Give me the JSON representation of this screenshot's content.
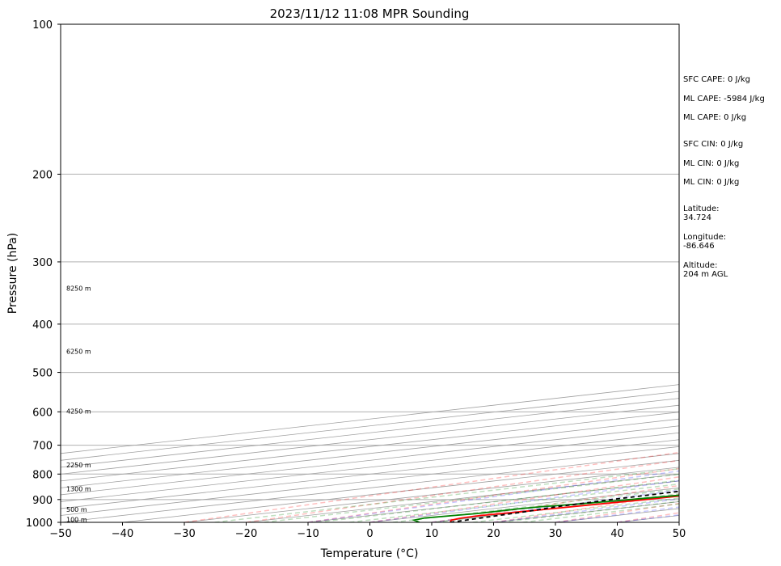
{
  "chart_data": {
    "type": "line",
    "title": "2023/11/12 11:08 MPR Sounding",
    "xlabel": "Temperature (°C)",
    "ylabel": "Pressure (hPa)",
    "xlim": [
      -50,
      50
    ],
    "ylim": [
      1000,
      100
    ],
    "y_scale": "log",
    "grid": true,
    "x_ticks": [
      -50,
      -40,
      -30,
      -20,
      -10,
      0,
      10,
      20,
      30,
      40,
      50
    ],
    "y_ticks": [
      100,
      200,
      300,
      400,
      500,
      600,
      700,
      800,
      900,
      1000
    ],
    "skew_isotherm_spacing": 10,
    "dry_adiabats_theta_c": [
      -30,
      -20,
      -10,
      0,
      10,
      20,
      30,
      40,
      50,
      60,
      70,
      80,
      90,
      100,
      110,
      120,
      130,
      140,
      150,
      160
    ],
    "moist_adiabats_t0_c": [
      -10,
      0,
      10,
      20,
      30,
      40
    ],
    "mixing_ratio_lines_gkg": [
      0.5,
      1,
      2,
      3,
      5,
      8,
      12,
      16,
      20
    ],
    "height_labels": [
      {
        "label": "100 m",
        "pressure": 990
      },
      {
        "label": "500 m",
        "pressure": 945
      },
      {
        "label": "1300 m",
        "pressure": 860
      },
      {
        "label": "2250 m",
        "pressure": 770
      },
      {
        "label": "4250 m",
        "pressure": 600
      },
      {
        "label": "6250 m",
        "pressure": 455
      },
      {
        "label": "8250 m",
        "pressure": 340
      }
    ],
    "series": [
      {
        "color": "#ff0000",
        "pressure": [
          1000,
          990,
          980,
          970,
          960,
          950,
          930,
          900,
          880,
          860,
          840,
          820,
          800,
          770,
          740,
          700,
          680,
          650,
          620,
          600,
          570,
          540,
          510,
          490,
          470,
          450,
          420,
          400,
          380,
          360,
          340,
          320,
          300,
          280
        ],
        "temperature": [
          13.0,
          10.0,
          8.5,
          8.0,
          8.5,
          9.0,
          10.0,
          11.5,
          12.0,
          12.5,
          13.5,
          13.5,
          13.5,
          13.5,
          13.0,
          12.0,
          11.0,
          10.0,
          7.5,
          6.0,
          3.5,
          0.5,
          -2.5,
          -4.5,
          -6.0,
          -8.0,
          -11.0,
          -13.5,
          -16.5,
          -19.5,
          -23.5,
          -26.5,
          -30.0,
          -34.0
        ]
      },
      {
        "color": "#008000",
        "pressure": [
          1000,
          990,
          980,
          970,
          960,
          950,
          940,
          930,
          920,
          900,
          880,
          860,
          850,
          840,
          820,
          800,
          780,
          760,
          740,
          700,
          680,
          650,
          620,
          600,
          580,
          560,
          550,
          530,
          500,
          480,
          450,
          420,
          400,
          390,
          380,
          370,
          360,
          350,
          330,
          310,
          300,
          290,
          280
        ],
        "temperature": [
          8.0,
          4.0,
          2.5,
          3.5,
          4.5,
          4.5,
          4.5,
          5.0,
          7.0,
          9.0,
          11.0,
          12.0,
          10.0,
          8.0,
          7.0,
          9.0,
          2.0,
          -4.0,
          -10.0,
          -15.5,
          -16.5,
          -19.0,
          -21.5,
          -24.0,
          -27.0,
          -30.0,
          -30.5,
          -33.0,
          -37.0,
          -38.5,
          -41.0,
          -44.0,
          -45.5,
          -47.5,
          -48.0,
          -48.5,
          -50.0,
          -52.0,
          -53.5,
          -55.0,
          -59.0,
          -71.0,
          -88.0
        ]
      },
      {
        "color": "#000000",
        "style": "dashed",
        "pressure": [
          1000,
          950,
          930,
          900,
          850,
          800,
          760,
          700,
          650,
          600,
          550,
          500,
          450,
          400,
          350,
          300,
          280
        ],
        "temperature": [
          13.0,
          9.5,
          7.5,
          6.0,
          4.5,
          2.5,
          1.0,
          -1.0,
          -3.5,
          -7.0,
          -11.0,
          -15.5,
          -21.0,
          -27.5,
          -35.0,
          -44.0,
          -48.0
        ]
      }
    ]
  },
  "info": {
    "sfc_cape": "SFC CAPE: 0 J/kg",
    "ml_cape_1": "ML CAPE: -5984 J/kg",
    "ml_cape_2": "ML CAPE: 0 J/kg",
    "sfc_cin": "SFC CIN: 0 J/kg",
    "ml_cin_1": "ML CIN: 0 J/kg",
    "ml_cin_2": "ML CIN: 0 J/kg",
    "latitude_label": "Latitude:",
    "latitude_value": "34.724",
    "longitude_label": "Longitude:",
    "longitude_value": "-86.646",
    "altitude_label": "Altitude:",
    "altitude_value": "204 m AGL"
  }
}
